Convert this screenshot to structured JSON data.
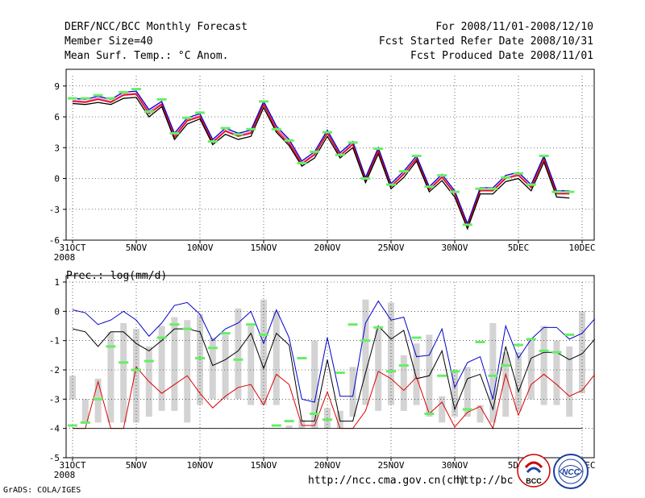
{
  "header": {
    "title": "DERF/NCC/BCC Monthly Forecast",
    "member": "Member Size=40",
    "variable": "Mean Surf. Temp.: °C Anom.",
    "period": "For 2008/11/01-2008/12/10",
    "started": "Fcst Started Refer Date 2008/10/31",
    "produced": "Fcst Produced Date 2008/11/01"
  },
  "footer": {
    "url1": "http://ncc.cma.gov.cn(ch)",
    "url2": "http://bcc.cma.gov.cn(en)",
    "grads": "GrADS: COLA/IGES",
    "logo_bcc": "BCC",
    "logo_ncc": "NCC"
  },
  "colors": {
    "gray_bar": "#d3d3d3",
    "green": "#66ee66",
    "blue": "#0000cc",
    "red": "#dd0000",
    "pink": "#ff44aa",
    "purple": "#6600cc",
    "black": "#000000"
  },
  "chart_data": [
    {
      "type": "line",
      "title": "Mean Surf. Temp.: °C Anom.",
      "x_ticks": [
        "31OCT",
        "5NOV",
        "10NOV",
        "15NOV",
        "20NOV",
        "25NOV",
        "30NOV",
        "5DEC",
        "10DEC"
      ],
      "x_tick_index": [
        0,
        5,
        10,
        15,
        20,
        25,
        30,
        35,
        40
      ],
      "x_year": "2008",
      "ylim": [
        -6,
        10
      ],
      "y_ticks": [
        -6,
        -3,
        0,
        3,
        6,
        9
      ],
      "series": [
        {
          "name": "median",
          "color": "#ff44aa",
          "values": [
            7.6,
            7.5,
            7.8,
            7.5,
            8.2,
            8.3,
            6.5,
            7.3,
            4.2,
            5.7,
            6.1,
            3.6,
            4.7,
            4.2,
            4.5,
            7.3,
            4.9,
            3.6,
            1.5,
            2.4,
            4.5,
            2.3,
            3.4,
            -0.1,
            2.8,
            -0.7,
            0.5,
            2.0,
            -1.0,
            0.2,
            -1.4,
            -4.6,
            -1.1,
            -1.1,
            0.1,
            0.4,
            -0.8,
            2.0,
            -1.4,
            -1.4
          ]
        },
        {
          "name": "upper",
          "color": "#0000cc",
          "values": [
            7.8,
            7.7,
            8.0,
            7.7,
            8.4,
            8.5,
            6.7,
            7.5,
            4.4,
            5.9,
            6.3,
            3.8,
            4.9,
            4.4,
            4.7,
            7.5,
            5.1,
            3.8,
            1.7,
            2.6,
            4.7,
            2.5,
            3.6,
            0.1,
            3.0,
            -0.5,
            0.7,
            2.2,
            -0.8,
            0.4,
            -1.2,
            -4.4,
            -0.9,
            -0.9,
            0.3,
            0.6,
            -0.6,
            2.2,
            -1.2,
            -1.2
          ]
        },
        {
          "name": "mean",
          "color": "#dd0000",
          "values": [
            7.5,
            7.4,
            7.7,
            7.4,
            8.1,
            8.2,
            6.3,
            7.2,
            4.0,
            5.6,
            6.0,
            3.5,
            4.6,
            4.1,
            4.4,
            7.2,
            4.7,
            3.4,
            1.4,
            2.3,
            4.4,
            2.2,
            3.3,
            -0.2,
            2.7,
            -0.8,
            0.4,
            1.9,
            -1.1,
            0.1,
            -1.5,
            -4.7,
            -1.2,
            -1.2,
            0.0,
            0.3,
            -0.9,
            1.9,
            -1.5,
            -1.5
          ]
        },
        {
          "name": "lower",
          "color": "#000000",
          "values": [
            7.3,
            7.2,
            7.4,
            7.2,
            7.8,
            7.9,
            6.0,
            7.0,
            3.8,
            5.3,
            5.8,
            3.3,
            4.3,
            3.8,
            4.1,
            6.9,
            4.5,
            3.2,
            1.2,
            2.0,
            4.1,
            2.0,
            3.0,
            -0.4,
            2.4,
            -1.0,
            0.1,
            1.7,
            -1.3,
            -0.2,
            -1.8,
            -4.9,
            -1.5,
            -1.5,
            -0.3,
            0.0,
            -1.2,
            1.6,
            -1.8,
            -1.9
          ]
        },
        {
          "name": "observed-ref",
          "color": "#66ee66",
          "values": [
            7.8,
            7.8,
            8.1,
            7.8,
            8.4,
            8.7,
            6.5,
            7.7,
            4.4,
            5.9,
            6.4,
            3.6,
            4.9,
            4.3,
            4.8,
            7.5,
            4.8,
            3.7,
            1.5,
            2.6,
            4.5,
            2.3,
            3.5,
            0.0,
            2.9,
            -0.6,
            0.7,
            2.2,
            -0.8,
            0.3,
            -1.3,
            -4.5,
            -1.0,
            -1.0,
            0.1,
            0.5,
            -0.6,
            2.2,
            -1.3,
            -1.3
          ]
        }
      ]
    },
    {
      "type": "bar",
      "title": "Prec.: log(mm/d)",
      "x_ticks": [
        "31OCT",
        "5NOV",
        "10NOV",
        "15NOV",
        "20NOV",
        "25NOV",
        "30NOV",
        "5DEC",
        "10DEC"
      ],
      "x_tick_index": [
        0,
        5,
        10,
        15,
        20,
        25,
        30,
        35,
        40
      ],
      "x_year": "2008",
      "ylim": [
        -5,
        1
      ],
      "y_ticks": [
        -5,
        -4,
        -3,
        -2,
        -1,
        0,
        1
      ],
      "bars": [
        {
          "low": -3.0,
          "high": -2.2
        },
        {
          "low": -3.8,
          "high": -3.0
        },
        {
          "low": -3.8,
          "high": -2.3
        },
        {
          "low": -3.8,
          "high": -0.7
        },
        {
          "low": -3.8,
          "high": -0.4
        },
        {
          "low": -3.8,
          "high": -0.6
        },
        {
          "low": -3.6,
          "high": -1.2
        },
        {
          "low": -3.4,
          "high": -0.5
        },
        {
          "low": -3.4,
          "high": -0.2
        },
        {
          "low": -3.8,
          "high": -0.3
        },
        {
          "low": -3.2,
          "high": -0.1
        },
        {
          "low": -3.0,
          "high": -0.9
        },
        {
          "low": -3.0,
          "high": -0.8
        },
        {
          "low": -3.0,
          "high": 0.1
        },
        {
          "low": -3.2,
          "high": -0.5
        },
        {
          "low": -3.2,
          "high": 0.4
        },
        {
          "low": -3.2,
          "high": 0.0
        },
        {
          "low": -4.0,
          "high": -3.9
        },
        {
          "low": -4.0,
          "high": -3.7
        },
        {
          "low": -4.0,
          "high": -1.0
        },
        {
          "low": -4.0,
          "high": -3.3
        },
        {
          "low": -4.0,
          "high": -3.4
        },
        {
          "low": -3.6,
          "high": -1.9
        },
        {
          "low": -3.2,
          "high": 0.4
        },
        {
          "low": -3.4,
          "high": -0.6
        },
        {
          "low": -3.2,
          "high": 0.3
        },
        {
          "low": -3.4,
          "high": -1.5
        },
        {
          "low": -3.2,
          "high": -1.1
        },
        {
          "low": -3.6,
          "high": -0.8
        },
        {
          "low": -3.8,
          "high": -2.9
        },
        {
          "low": -3.6,
          "high": -2.0
        },
        {
          "low": -3.6,
          "high": -1.9
        },
        {
          "low": -3.8,
          "high": -3.2
        },
        {
          "low": -3.8,
          "high": -0.4
        },
        {
          "low": -3.6,
          "high": -1.4
        },
        {
          "low": -3.4,
          "high": -1.4
        },
        {
          "low": -3.0,
          "high": -1.0
        },
        {
          "low": -3.2,
          "high": -0.5
        },
        {
          "low": -3.2,
          "high": -1.0
        },
        {
          "low": -3.6,
          "high": -1.2
        },
        {
          "low": -2.8,
          "high": 0.0
        }
      ],
      "series": [
        {
          "name": "upper",
          "color": "#0000cc",
          "values": [
            0.05,
            -0.05,
            -0.45,
            -0.3,
            0.0,
            -0.3,
            -0.85,
            -0.4,
            0.2,
            0.3,
            -0.1,
            -1.0,
            -0.6,
            -0.4,
            0.0,
            -1.1,
            0.05,
            -0.9,
            -3.0,
            -3.1,
            -0.9,
            -2.9,
            -2.9,
            -0.4,
            0.35,
            -0.3,
            -0.2,
            -1.55,
            -1.5,
            -0.6,
            -2.6,
            -1.75,
            -1.55,
            -3.0,
            -0.5,
            -1.6,
            -0.95,
            -0.55,
            -0.55,
            -0.95,
            -0.75,
            -0.25
          ]
        },
        {
          "name": "mean",
          "color": "#000000",
          "values": [
            -0.6,
            -0.7,
            -1.2,
            -0.7,
            -0.7,
            -1.1,
            -1.35,
            -1.0,
            -0.6,
            -0.6,
            -0.7,
            -1.85,
            -1.65,
            -1.35,
            -0.75,
            -1.95,
            -0.75,
            -1.15,
            -3.75,
            -3.75,
            -1.65,
            -3.75,
            -3.75,
            -2.1,
            -0.5,
            -0.95,
            -0.65,
            -2.3,
            -2.2,
            -1.35,
            -3.35,
            -2.3,
            -2.15,
            -3.35,
            -1.2,
            -2.75,
            -1.6,
            -1.4,
            -1.4,
            -1.65,
            -1.45,
            -0.95
          ]
        },
        {
          "name": "lower",
          "color": "#dd0000",
          "values": [
            -4.0,
            -4.0,
            -2.4,
            -4.0,
            -4.0,
            -1.9,
            -2.4,
            -2.8,
            -2.5,
            -2.2,
            -2.8,
            -3.3,
            -2.9,
            -2.6,
            -2.5,
            -3.2,
            -2.15,
            -2.5,
            -3.9,
            -3.9,
            -2.75,
            -4.0,
            -4.0,
            -3.4,
            -2.05,
            -2.3,
            -2.7,
            -2.25,
            -3.5,
            -3.1,
            -3.95,
            -3.45,
            -3.25,
            -4.0,
            -2.15,
            -3.55,
            -2.5,
            -2.15,
            -2.5,
            -2.9,
            -2.7,
            -2.15
          ]
        },
        {
          "name": "observed-ref",
          "color": "#66ee66",
          "values": [
            -3.9,
            -3.8,
            -3.0,
            -1.2,
            -1.75,
            -2.0,
            -1.7,
            -0.9,
            -0.45,
            -0.6,
            -1.6,
            -1.25,
            -0.75,
            -1.65,
            -0.45,
            -0.8,
            -3.9,
            -3.75,
            -1.6,
            -3.5,
            -3.7,
            -2.1,
            -0.45,
            -1.0,
            -0.55,
            -2.05,
            -1.85,
            -0.9,
            -3.5,
            -2.2,
            -2.05,
            -3.35,
            -1.05,
            -2.2,
            -1.85,
            -1.15,
            -0.95,
            -1.35,
            -1.4,
            -0.8
          ]
        }
      ],
      "baseline": -4.0
    }
  ]
}
